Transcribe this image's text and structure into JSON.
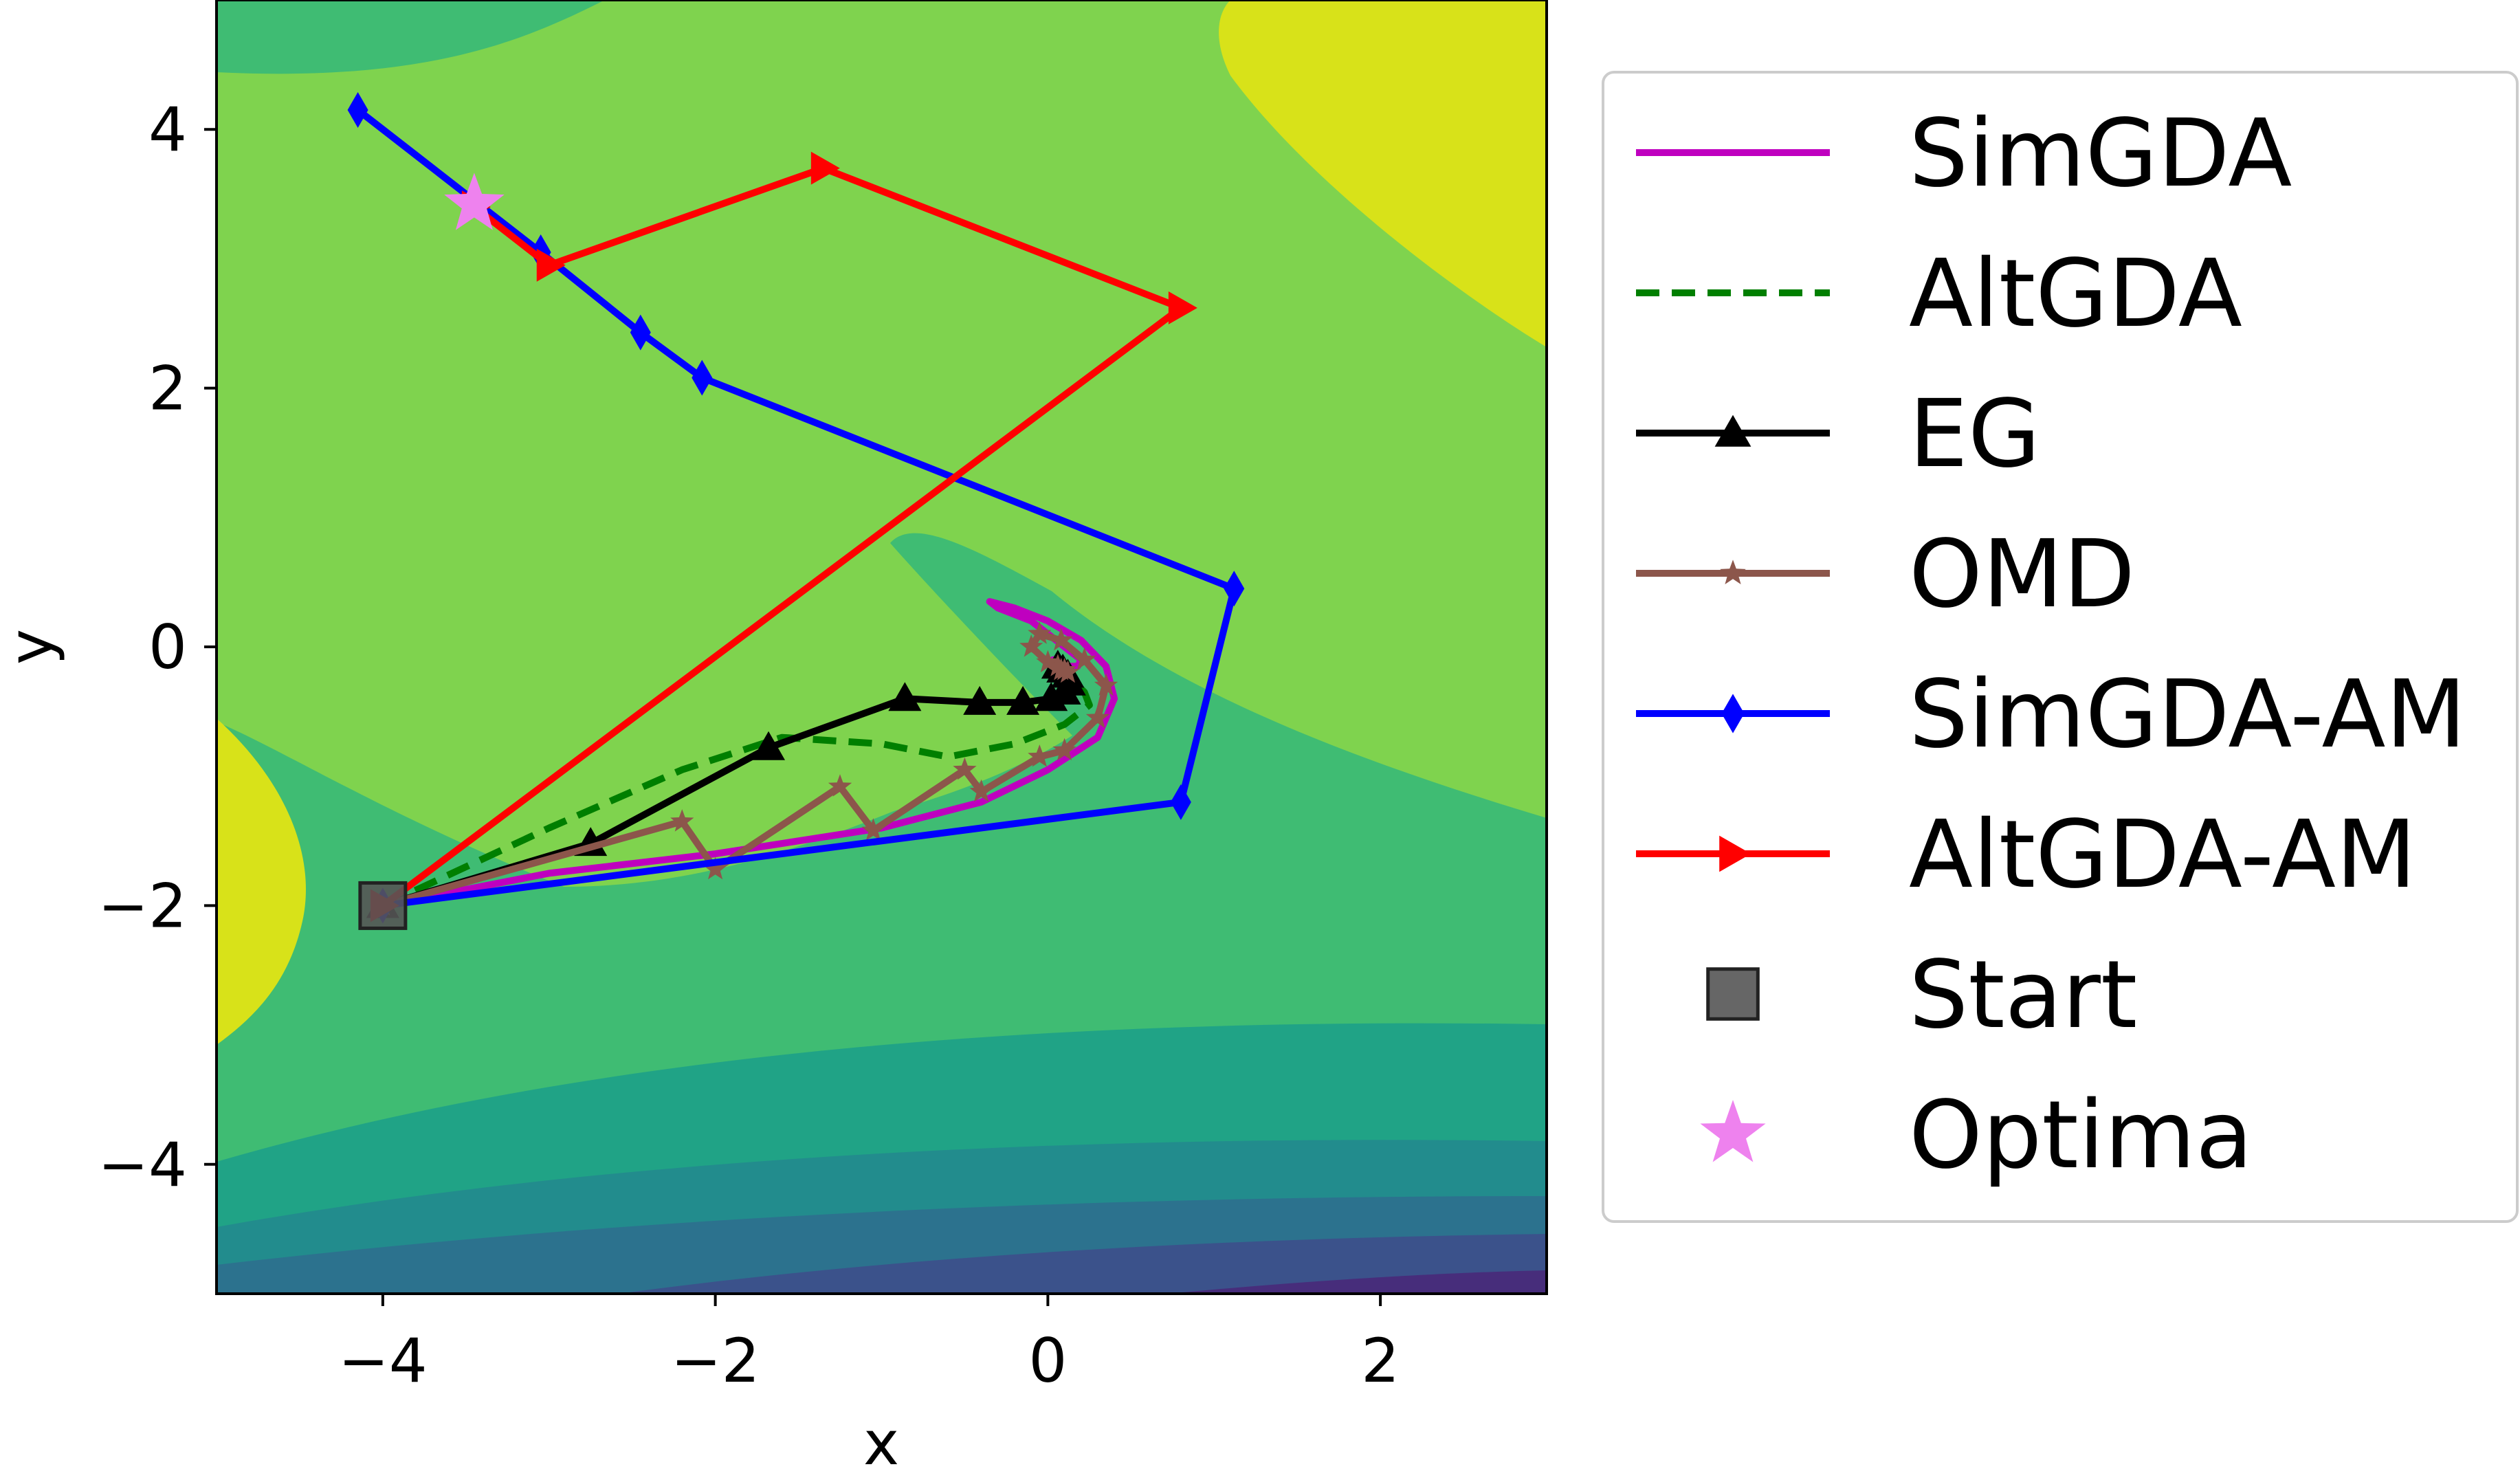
{
  "chart_data": {
    "type": "line",
    "title": "",
    "xlabel": "x",
    "ylabel": "y",
    "xlim": [
      -5,
      3
    ],
    "ylim": [
      -5,
      5
    ],
    "xticks": [
      -4,
      -2,
      0,
      2
    ],
    "yticks": [
      -4,
      -2,
      0,
      2,
      4
    ],
    "xtick_labels": [
      "−4",
      "−2",
      "0",
      "2"
    ],
    "ytick_labels": [
      "−4",
      "−2",
      "0",
      "2",
      "4"
    ],
    "grid": false,
    "legend_position": "right, outside plot",
    "background": "filled contour map (viridis colormap)",
    "series": [
      {
        "name": "SimGDA",
        "color": "#bf00bf",
        "style": "solid",
        "marker": "none",
        "x": [
          -4.0,
          -3.0,
          -2.0,
          -1.0,
          -0.4,
          0.0,
          0.3,
          0.4,
          0.35,
          0.2,
          0.0,
          -0.2,
          -0.35,
          -0.3,
          -0.1,
          0.05,
          0.15,
          0.2,
          0.18,
          0.12,
          0.07,
          0.04,
          0.03
        ],
        "y": [
          -2.0,
          -1.75,
          -1.6,
          -1.4,
          -1.2,
          -0.95,
          -0.7,
          -0.4,
          -0.15,
          0.05,
          0.2,
          0.3,
          0.35,
          0.3,
          0.2,
          0.05,
          -0.05,
          -0.1,
          -0.15,
          -0.15,
          -0.12,
          -0.1,
          -0.1
        ]
      },
      {
        "name": "AltGDA",
        "color": "#007f00",
        "style": "dashed",
        "marker": "none",
        "x": [
          -4.0,
          -3.0,
          -2.2,
          -1.6,
          -1.0,
          -0.6,
          -0.2,
          0.1,
          0.25,
          0.22,
          0.14,
          0.08,
          0.05
        ],
        "y": [
          -2.0,
          -1.4,
          -0.95,
          -0.7,
          -0.75,
          -0.85,
          -0.75,
          -0.6,
          -0.45,
          -0.35,
          -0.25,
          -0.2,
          -0.18
        ]
      },
      {
        "name": "EG",
        "color": "#000000",
        "style": "solid",
        "marker": "triangle",
        "x": [
          -4.0,
          -2.75,
          -1.68,
          -0.86,
          -0.41,
          -0.15,
          0.02,
          0.1,
          0.13,
          0.12,
          0.09,
          0.06
        ],
        "y": [
          -2.0,
          -1.52,
          -0.78,
          -0.4,
          -0.43,
          -0.43,
          -0.4,
          -0.35,
          -0.28,
          -0.22,
          -0.18,
          -0.15
        ]
      },
      {
        "name": "OMD",
        "color": "#8c564b",
        "style": "solid",
        "marker": "star",
        "x": [
          -4.0,
          -2.2,
          -2.0,
          -1.25,
          -1.05,
          -0.5,
          -0.4,
          -0.05,
          0.1,
          0.3,
          0.35,
          0.22,
          0.08,
          -0.05,
          -0.1,
          0.0,
          0.08,
          0.12,
          0.1,
          0.06
        ],
        "y": [
          -2.0,
          -1.35,
          -1.72,
          -1.08,
          -1.42,
          -0.95,
          -1.12,
          -0.85,
          -0.8,
          -0.55,
          -0.3,
          -0.1,
          0.05,
          0.1,
          0.0,
          -0.12,
          -0.18,
          -0.2,
          -0.18,
          -0.15
        ]
      },
      {
        "name": "SimGDA-AM",
        "color": "#0000ff",
        "style": "solid",
        "marker": "thin_diamond",
        "x": [
          -4.0,
          0.8,
          1.12,
          -2.08,
          -2.45,
          -3.05,
          -4.15
        ],
        "y": [
          -2.0,
          -1.2,
          0.45,
          2.08,
          2.43,
          3.05,
          4.15
        ]
      },
      {
        "name": "AltGDA-AM",
        "color": "#ff0000",
        "style": "solid",
        "marker": "triangle_right",
        "x": [
          -4.0,
          0.8,
          -1.35,
          -3.0,
          -3.45
        ],
        "y": [
          -2.0,
          2.62,
          3.7,
          2.95,
          3.4
        ]
      }
    ],
    "points": [
      {
        "name": "Start",
        "x": -4.0,
        "y": -2.0,
        "marker": "square",
        "color": "#555555"
      },
      {
        "name": "Optima",
        "x": -3.45,
        "y": 3.42,
        "marker": "star",
        "color": "#ee82ee"
      }
    ],
    "legend": [
      "SimGDA",
      "AltGDA",
      "EG",
      "OMD",
      "SimGDA-AM",
      "AltGDA-AM",
      "Start",
      "Optima"
    ]
  }
}
